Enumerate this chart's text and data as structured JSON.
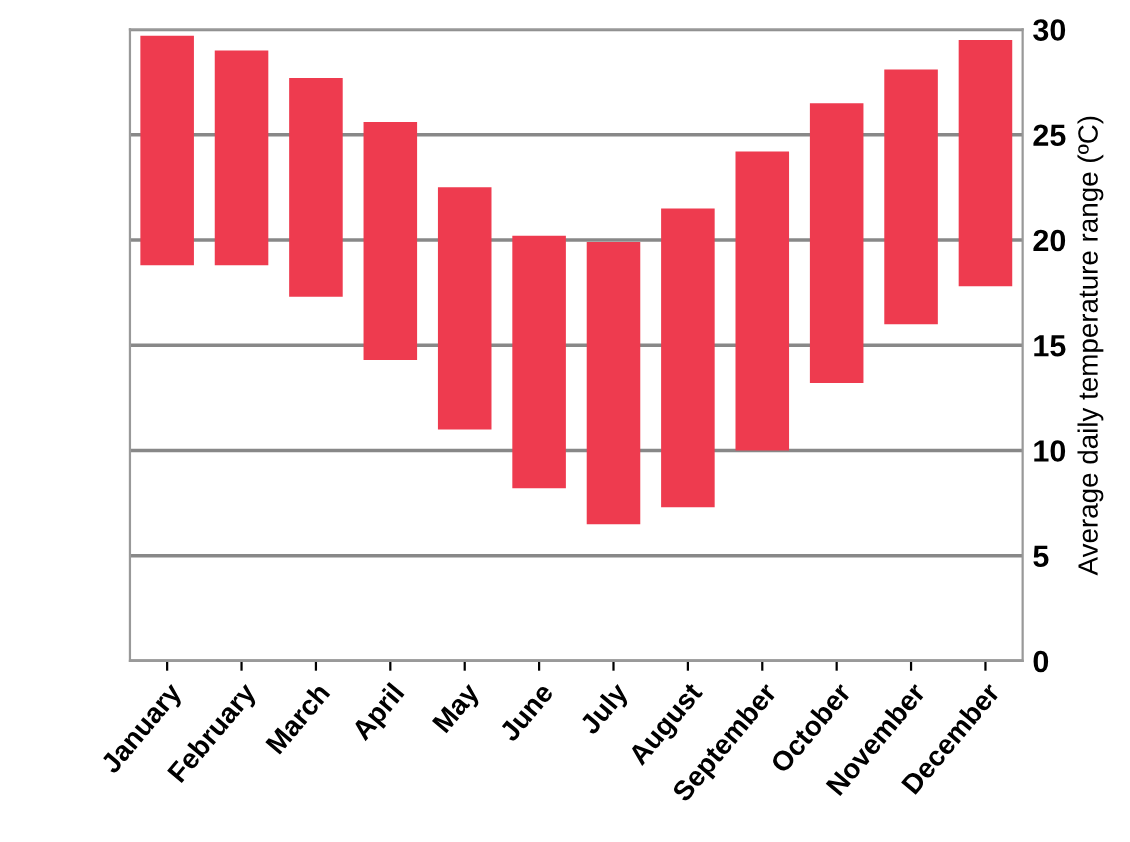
{
  "chart_data": {
    "type": "bar",
    "ylabel": "Average daily temperature range (ºC)",
    "categories": [
      "January",
      "February",
      "March",
      "April",
      "May",
      "June",
      "July",
      "August",
      "September",
      "October",
      "November",
      "December"
    ],
    "series": [
      {
        "color": "#ee3b4f",
        "base": [
          18.8,
          18.8,
          17.3,
          14.3,
          11.0,
          8.2,
          6.5,
          7.3,
          10.0,
          13.2,
          16.0,
          17.8
        ],
        "values": [
          10.9,
          10.2,
          10.4,
          11.3,
          11.5,
          12.0,
          13.4,
          14.2,
          14.2,
          13.3,
          12.1,
          11.7
        ]
      }
    ],
    "ylim": [
      0,
      30
    ],
    "yticks": [
      0,
      5,
      10,
      15,
      20,
      25,
      30
    ],
    "grid": "y",
    "legend": false
  }
}
